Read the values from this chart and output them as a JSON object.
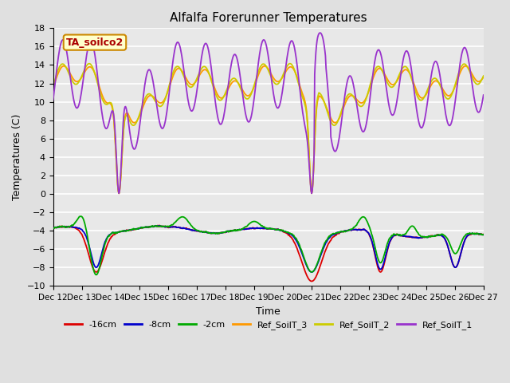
{
  "title": "Alfalfa Forerunner Temperatures",
  "xlabel": "Time",
  "ylabel": "Temperatures (C)",
  "annotation_text": "TA_soilco2",
  "annotation_bg": "#ffffcc",
  "annotation_border": "#cc8800",
  "annotation_text_color": "#aa0000",
  "ylim": [
    -10,
    18
  ],
  "yticks": [
    -10,
    -8,
    -6,
    -4,
    -2,
    0,
    2,
    4,
    6,
    8,
    10,
    12,
    14,
    16,
    18
  ],
  "bg_color": "#e0e0e0",
  "plot_bg_color": "#e8e8e8",
  "grid_color": "#ffffff",
  "colors": {
    "neg16cm": "#dd0000",
    "neg8cm": "#0000cc",
    "neg2cm": "#00aa00",
    "Ref_SoilT_3": "#ff9900",
    "Ref_SoilT_2": "#cccc00",
    "Ref_SoilT_1": "#9933cc"
  },
  "legend_labels": [
    "-16cm",
    "-8cm",
    "-2cm",
    "Ref_SoilT_3",
    "Ref_SoilT_2",
    "Ref_SoilT_1"
  ],
  "xtick_labels": [
    "Dec 12",
    "Dec 13",
    "Dec 14",
    "Dec 15",
    "Dec 16",
    "Dec 17",
    "Dec 18",
    "Dec 19",
    "Dec 20",
    "Dec 21",
    "Dec 22",
    "Dec 23",
    "Dec 24",
    "Dec 25",
    "Dec 26",
    "Dec 27"
  ],
  "n_days": 15,
  "n_pts_per_day": 48
}
